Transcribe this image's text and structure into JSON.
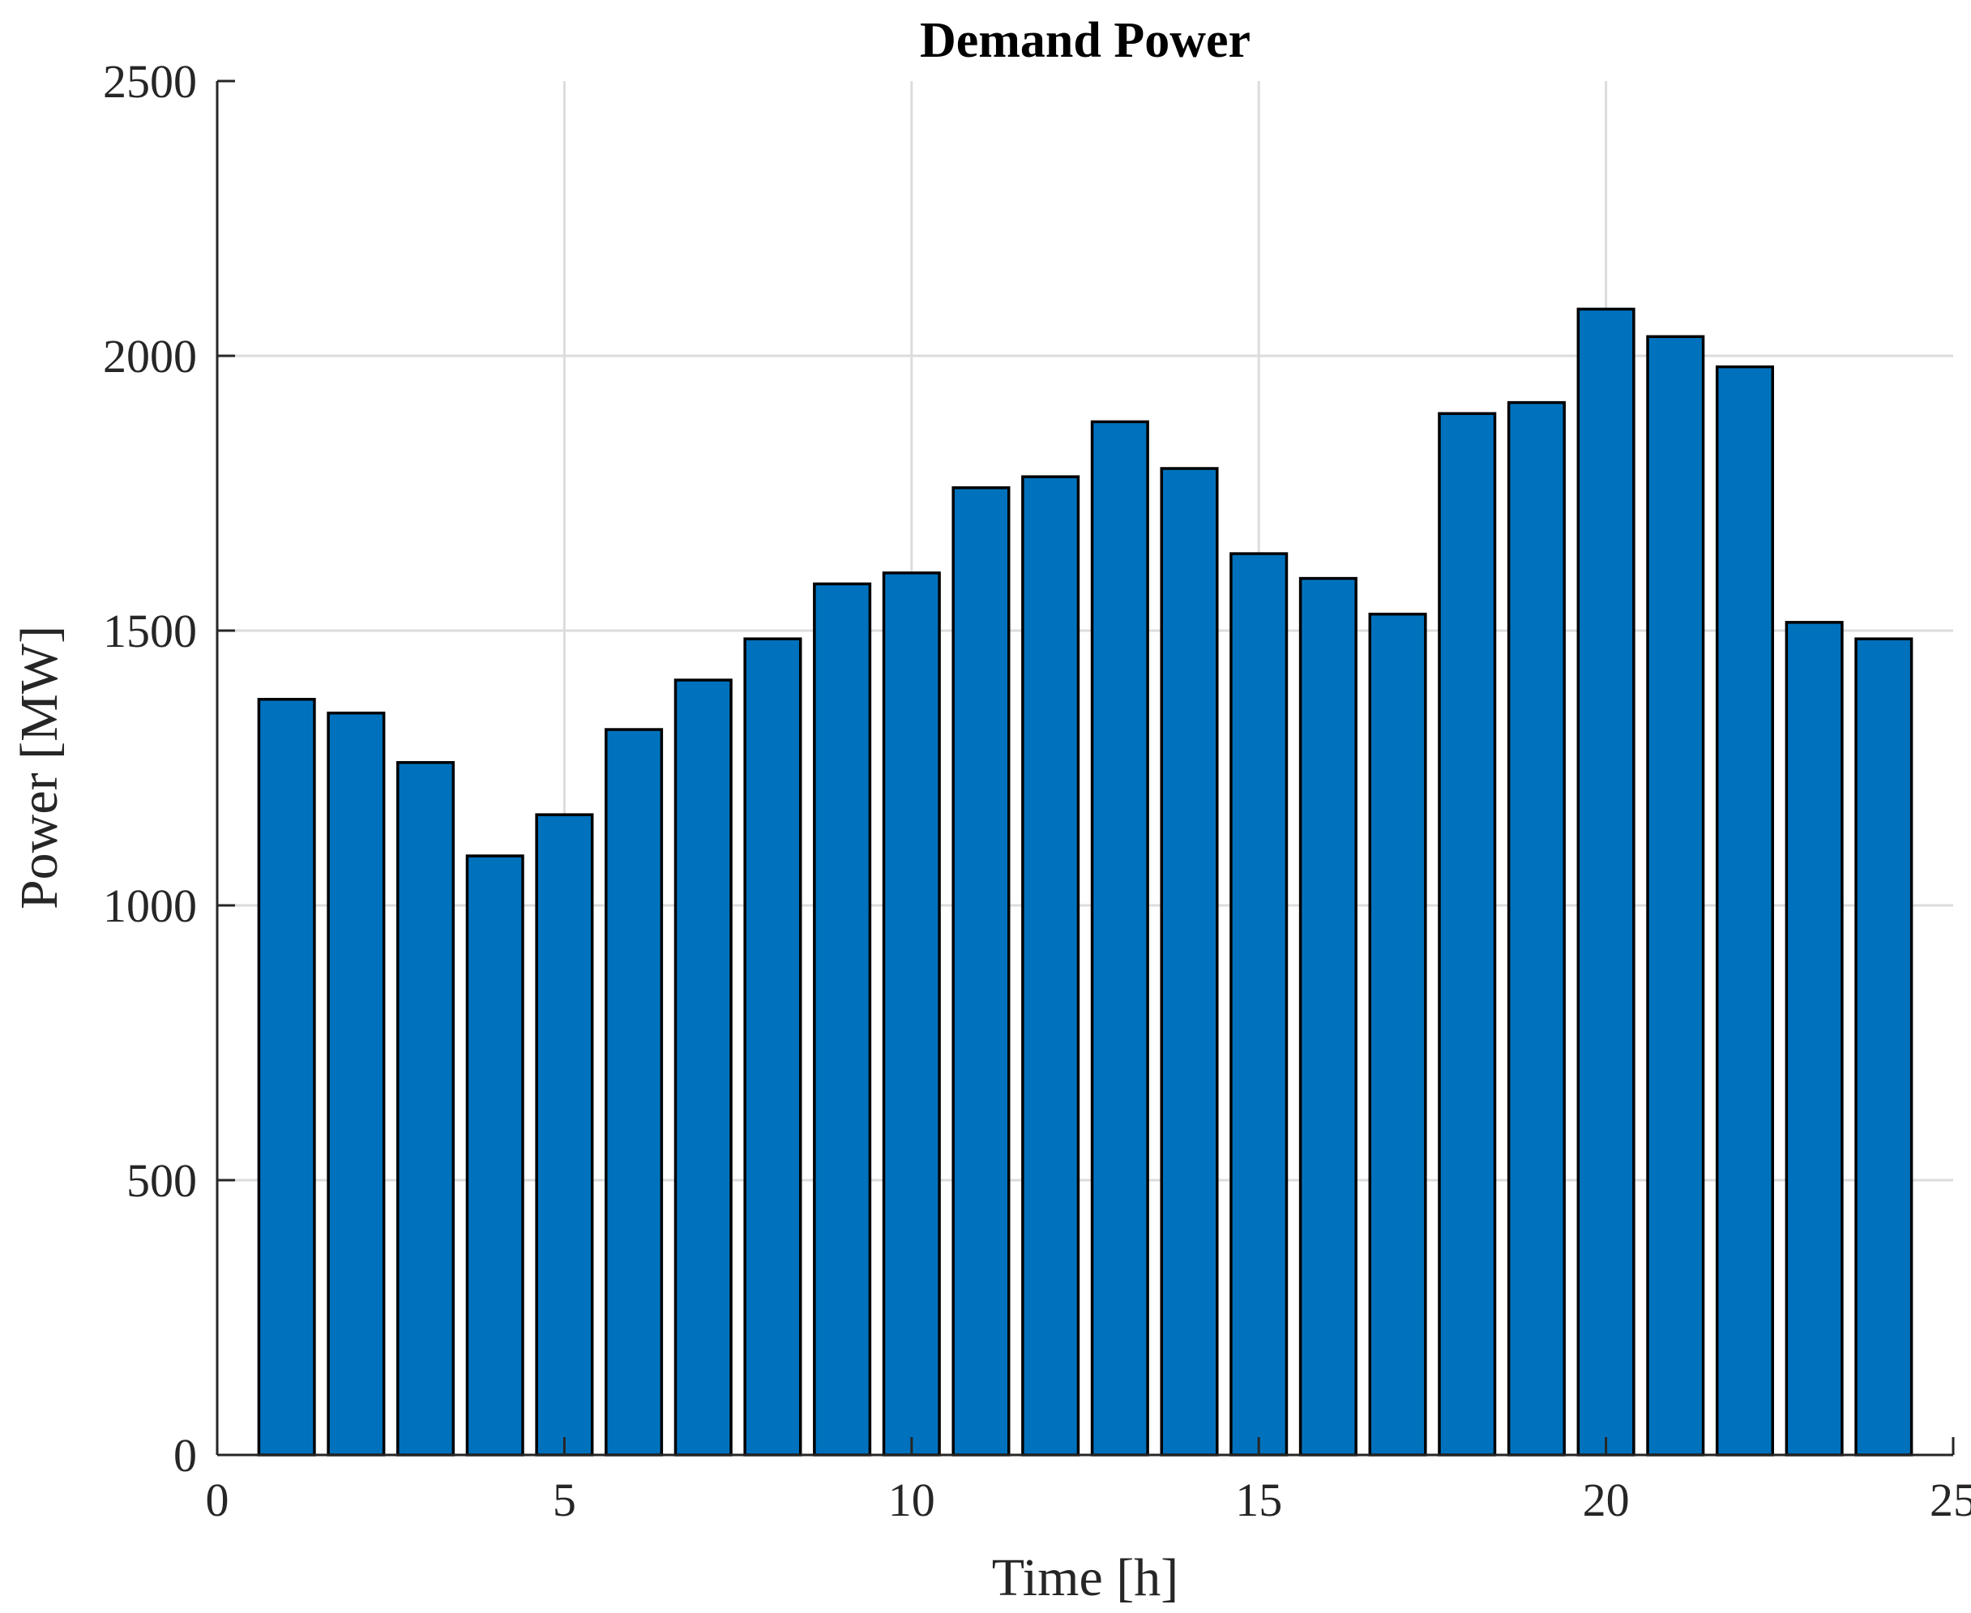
{
  "chart_data": {
    "type": "bar",
    "title": "Demand Power",
    "xlabel": "Time [h]",
    "ylabel": "Power [MW]",
    "x": [
      1,
      2,
      3,
      4,
      5,
      6,
      7,
      8,
      9,
      10,
      11,
      12,
      13,
      14,
      15,
      16,
      17,
      18,
      19,
      20,
      21,
      22,
      23,
      24
    ],
    "values": [
      1375,
      1350,
      1260,
      1090,
      1165,
      1320,
      1410,
      1485,
      1585,
      1605,
      1760,
      1780,
      1880,
      1795,
      1640,
      1595,
      1530,
      1895,
      1915,
      2085,
      2035,
      1980,
      1515,
      1485
    ],
    "xlim": [
      0,
      25
    ],
    "ylim": [
      0,
      2500
    ],
    "xticks": [
      "0",
      "5",
      "10",
      "15",
      "20",
      "25"
    ],
    "yticks": [
      "0",
      "500",
      "1000",
      "1500",
      "2000",
      "2500"
    ],
    "grid": true,
    "bar_color": "#0072bd",
    "edge_color": "#000000"
  }
}
